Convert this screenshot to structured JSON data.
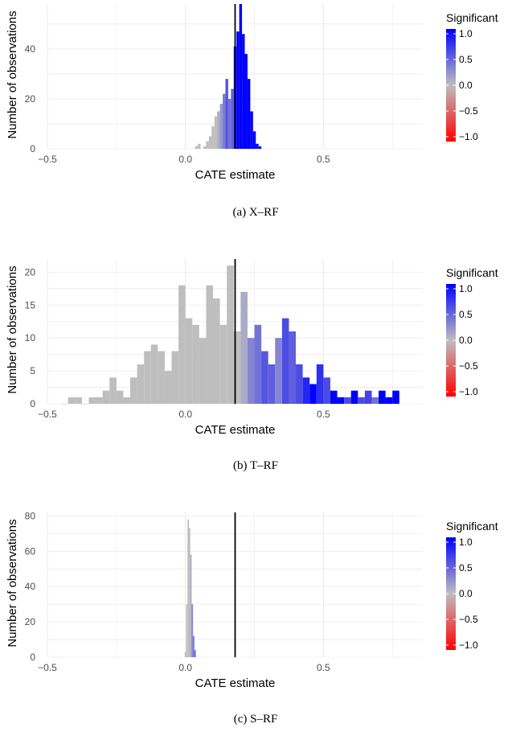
{
  "colors": {
    "negative": "#ff0000",
    "neutral": "#bebebe",
    "positive": "#0000ff",
    "vline": "#000000",
    "grid": "#ebebeb"
  },
  "legend": {
    "title": "Significant",
    "ticks": [
      "1.0",
      "0.5",
      "0.0",
      "−0.5",
      "−1.0"
    ],
    "tick_values": [
      1.0,
      0.5,
      0.0,
      -0.5,
      -1.0
    ]
  },
  "chart_data": [
    {
      "type": "bar",
      "caption": "(a) X–RF",
      "xlabel": "CATE estimate",
      "ylabel": "Number of observations",
      "xlim": [
        -0.5,
        0.86
      ],
      "ylim": [
        0,
        58
      ],
      "xticks": [
        -0.5,
        0.0,
        0.5
      ],
      "xtick_labels": [
        "−0.5",
        "0.0",
        "0.5"
      ],
      "yticks": [
        0,
        20,
        40
      ],
      "ytick_labels": [
        "0",
        "20",
        "40"
      ],
      "vline": 0.18,
      "bin_width": 0.01,
      "bins": [
        {
          "x": 0.04,
          "count": 1,
          "sig": 0.0
        },
        {
          "x": 0.05,
          "count": 2,
          "sig": 0.0
        },
        {
          "x": 0.07,
          "count": 1,
          "sig": 0.0
        },
        {
          "x": 0.08,
          "count": 3,
          "sig": 0.0
        },
        {
          "x": 0.09,
          "count": 5,
          "sig": 0.0
        },
        {
          "x": 0.1,
          "count": 9,
          "sig": 0.0
        },
        {
          "x": 0.11,
          "count": 13,
          "sig": 0.0
        },
        {
          "x": 0.12,
          "count": 15,
          "sig": 0.1
        },
        {
          "x": 0.13,
          "count": 18,
          "sig": 0.2
        },
        {
          "x": 0.14,
          "count": 22,
          "sig": 0.35
        },
        {
          "x": 0.15,
          "count": 28,
          "sig": 0.55
        },
        {
          "x": 0.16,
          "count": 20,
          "sig": 0.4
        },
        {
          "x": 0.17,
          "count": 24,
          "sig": 0.5
        },
        {
          "x": 0.18,
          "count": 41,
          "sig": 0.85
        },
        {
          "x": 0.19,
          "count": 47,
          "sig": 1.0
        },
        {
          "x": 0.2,
          "count": 58,
          "sig": 1.0
        },
        {
          "x": 0.21,
          "count": 46,
          "sig": 1.0
        },
        {
          "x": 0.22,
          "count": 38,
          "sig": 1.0
        },
        {
          "x": 0.23,
          "count": 28,
          "sig": 1.0
        },
        {
          "x": 0.24,
          "count": 15,
          "sig": 1.0
        },
        {
          "x": 0.25,
          "count": 7,
          "sig": 1.0
        },
        {
          "x": 0.26,
          "count": 2,
          "sig": 1.0
        },
        {
          "x": 0.27,
          "count": 1,
          "sig": 1.0
        }
      ]
    },
    {
      "type": "bar",
      "caption": "(b) T–RF",
      "xlabel": "CATE estimate",
      "ylabel": "Number of observations",
      "xlim": [
        -0.5,
        0.86
      ],
      "ylim": [
        0,
        22
      ],
      "xticks": [
        -0.5,
        0.0,
        0.5
      ],
      "xtick_labels": [
        "−0.5",
        "0.0",
        "0.5"
      ],
      "yticks": [
        0,
        5,
        10,
        15,
        20
      ],
      "ytick_labels": [
        "0",
        "5",
        "10",
        "15",
        "20"
      ],
      "vline": 0.18,
      "bin_width": 0.025,
      "bins": [
        {
          "x": -0.4375,
          "count": 0,
          "sig": 0.0
        },
        {
          "x": -0.4125,
          "count": 1,
          "sig": 0.0
        },
        {
          "x": -0.3875,
          "count": 1,
          "sig": 0.0
        },
        {
          "x": -0.3625,
          "count": 0,
          "sig": 0.0
        },
        {
          "x": -0.3375,
          "count": 1,
          "sig": 0.0
        },
        {
          "x": -0.3125,
          "count": 1,
          "sig": 0.0
        },
        {
          "x": -0.2875,
          "count": 2,
          "sig": 0.0
        },
        {
          "x": -0.2625,
          "count": 4,
          "sig": 0.0
        },
        {
          "x": -0.2375,
          "count": 2,
          "sig": 0.0
        },
        {
          "x": -0.2125,
          "count": 1,
          "sig": 0.0
        },
        {
          "x": -0.1875,
          "count": 4,
          "sig": 0.0
        },
        {
          "x": -0.1625,
          "count": 6,
          "sig": 0.0
        },
        {
          "x": -0.1375,
          "count": 8,
          "sig": 0.0
        },
        {
          "x": -0.1125,
          "count": 9,
          "sig": 0.0
        },
        {
          "x": -0.0875,
          "count": 8,
          "sig": 0.0
        },
        {
          "x": -0.0625,
          "count": 5,
          "sig": 0.0
        },
        {
          "x": -0.0375,
          "count": 8,
          "sig": 0.0
        },
        {
          "x": -0.0125,
          "count": 18,
          "sig": 0.0
        },
        {
          "x": 0.0125,
          "count": 13,
          "sig": 0.0
        },
        {
          "x": 0.0375,
          "count": 12,
          "sig": 0.0
        },
        {
          "x": 0.0625,
          "count": 10,
          "sig": 0.0
        },
        {
          "x": 0.0875,
          "count": 18,
          "sig": 0.0
        },
        {
          "x": 0.1125,
          "count": 16,
          "sig": 0.0
        },
        {
          "x": 0.1375,
          "count": 12,
          "sig": 0.0
        },
        {
          "x": 0.1625,
          "count": 21,
          "sig": 0.0
        },
        {
          "x": 0.1875,
          "count": 11,
          "sig": 0.0
        },
        {
          "x": 0.2125,
          "count": 17,
          "sig": 0.1
        },
        {
          "x": 0.2375,
          "count": 10,
          "sig": 0.3
        },
        {
          "x": 0.2625,
          "count": 12,
          "sig": 0.4
        },
        {
          "x": 0.2875,
          "count": 8,
          "sig": 0.55
        },
        {
          "x": 0.3125,
          "count": 6,
          "sig": 0.5
        },
        {
          "x": 0.3375,
          "count": 10,
          "sig": 0.3
        },
        {
          "x": 0.3625,
          "count": 13,
          "sig": 0.6
        },
        {
          "x": 0.3875,
          "count": 11,
          "sig": 0.5
        },
        {
          "x": 0.4125,
          "count": 6,
          "sig": 0.6
        },
        {
          "x": 0.4375,
          "count": 4,
          "sig": 0.8
        },
        {
          "x": 0.4625,
          "count": 3,
          "sig": 1.0
        },
        {
          "x": 0.4875,
          "count": 6,
          "sig": 0.75
        },
        {
          "x": 0.5125,
          "count": 4,
          "sig": 0.6
        },
        {
          "x": 0.5375,
          "count": 2,
          "sig": 1.0
        },
        {
          "x": 0.5625,
          "count": 1,
          "sig": 1.0
        },
        {
          "x": 0.5875,
          "count": 1,
          "sig": 0.6
        },
        {
          "x": 0.6125,
          "count": 2,
          "sig": 1.0
        },
        {
          "x": 0.6375,
          "count": 1,
          "sig": 0.6
        },
        {
          "x": 0.6625,
          "count": 2,
          "sig": 0.65
        },
        {
          "x": 0.6875,
          "count": 1,
          "sig": 0.4
        },
        {
          "x": 0.7125,
          "count": 2,
          "sig": 1.0
        },
        {
          "x": 0.7375,
          "count": 1,
          "sig": 1.0
        },
        {
          "x": 0.7625,
          "count": 2,
          "sig": 1.0
        }
      ]
    },
    {
      "type": "bar",
      "caption": "(c) S–RF",
      "xlabel": "CATE estimate",
      "ylabel": "Number of observations",
      "xlim": [
        -0.5,
        0.86
      ],
      "ylim": [
        0,
        82
      ],
      "xticks": [
        -0.5,
        0.0,
        0.5
      ],
      "xtick_labels": [
        "−0.5",
        "0.0",
        "0.5"
      ],
      "yticks": [
        0,
        20,
        40,
        60,
        80
      ],
      "ytick_labels": [
        "0",
        "20",
        "40",
        "60",
        "80"
      ],
      "vline": 0.18,
      "bin_width": 0.005,
      "bins": [
        {
          "x": 0.0,
          "count": 3,
          "sig": 0.0
        },
        {
          "x": 0.005,
          "count": 30,
          "sig": 0.0
        },
        {
          "x": 0.01,
          "count": 78,
          "sig": 0.0
        },
        {
          "x": 0.015,
          "count": 73,
          "sig": 0.0
        },
        {
          "x": 0.02,
          "count": 58,
          "sig": 0.1
        },
        {
          "x": 0.025,
          "count": 30,
          "sig": 0.3
        },
        {
          "x": 0.03,
          "count": 12,
          "sig": 0.4
        },
        {
          "x": 0.035,
          "count": 4,
          "sig": 0.5
        }
      ]
    }
  ]
}
